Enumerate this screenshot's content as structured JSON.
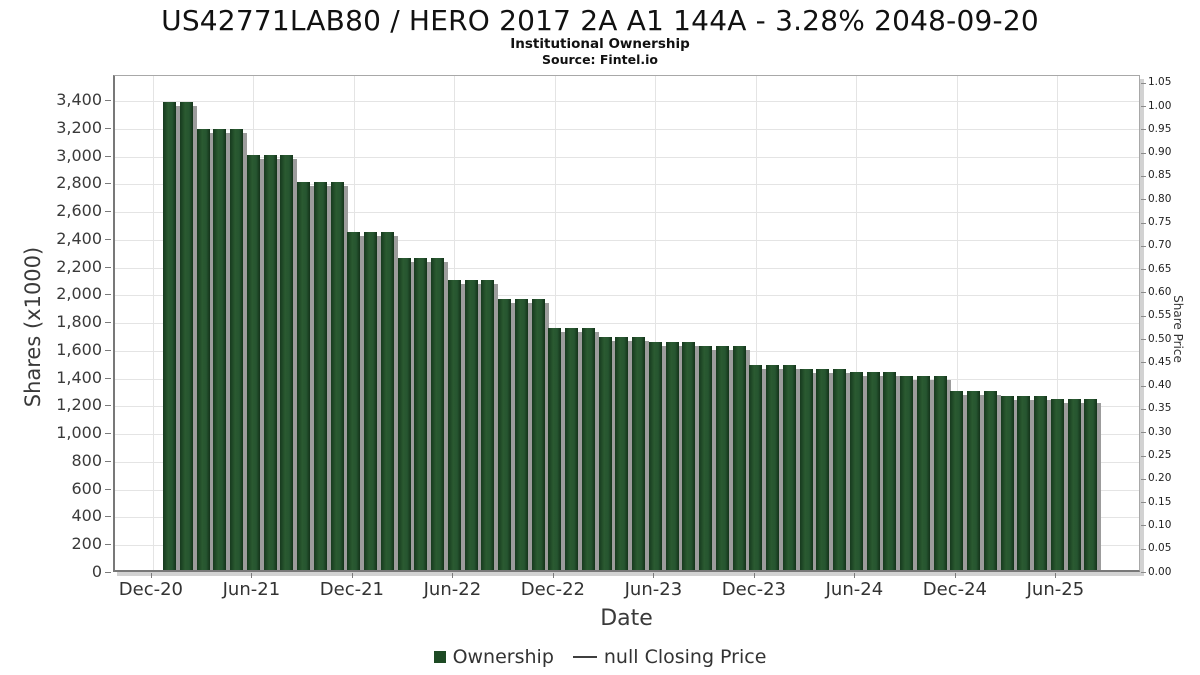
{
  "chart_data": {
    "type": "bar",
    "title": "US42771LAB80 / HERO 2017 2A A1 144A - 3.28% 2048-09-20",
    "subtitle": "Institutional Ownership",
    "source": "Source: Fintel.io",
    "xlabel": "Date",
    "ylabel_left": "Shares (x1000)",
    "ylabel_right": "Share Price",
    "y_left_axis": {
      "min": 0,
      "max": 3400,
      "step": 200,
      "grid": true
    },
    "y_right_axis": {
      "min": 0.0,
      "max": 1.05,
      "step": 0.05
    },
    "x_tick_labels": [
      "Dec-20",
      "Jun-21",
      "Dec-21",
      "Jun-22",
      "Dec-22",
      "Jun-23",
      "Dec-23",
      "Jun-24",
      "Dec-24",
      "Jun-25"
    ],
    "legend": {
      "ownership_label": "Ownership",
      "price_label": "null Closing Price",
      "bar_color": "#1d4a24"
    },
    "categories": [
      "Jan-21",
      "Feb-21",
      "Mar-21",
      "Apr-21",
      "May-21",
      "Jun-21",
      "Jul-21",
      "Aug-21",
      "Sep-21",
      "Oct-21",
      "Nov-21",
      "Dec-21",
      "Jan-22",
      "Feb-22",
      "Mar-22",
      "Apr-22",
      "May-22",
      "Jun-22",
      "Jul-22",
      "Aug-22",
      "Sep-22",
      "Oct-22",
      "Nov-22",
      "Dec-22",
      "Jan-23",
      "Feb-23",
      "Mar-23",
      "Apr-23",
      "May-23",
      "Jun-23",
      "Jul-23",
      "Aug-23",
      "Sep-23",
      "Oct-23",
      "Nov-23",
      "Dec-23",
      "Jan-24",
      "Feb-24",
      "Mar-24",
      "Apr-24",
      "May-24",
      "Jun-24",
      "Jul-24",
      "Aug-24",
      "Sep-24",
      "Oct-24",
      "Nov-24",
      "Dec-24",
      "Jan-25",
      "Feb-25",
      "Mar-25",
      "Apr-25",
      "May-25",
      "Jun-25",
      "Jul-25",
      "Aug-25"
    ],
    "values": [
      3390,
      3390,
      3195,
      3195,
      3195,
      3010,
      3010,
      3010,
      2815,
      2815,
      2815,
      2455,
      2455,
      2455,
      2270,
      2270,
      2270,
      2110,
      2110,
      2110,
      1975,
      1975,
      1975,
      1765,
      1765,
      1765,
      1700,
      1700,
      1700,
      1665,
      1665,
      1665,
      1635,
      1635,
      1635,
      1500,
      1500,
      1500,
      1470,
      1470,
      1470,
      1450,
      1450,
      1450,
      1420,
      1420,
      1420,
      1310,
      1310,
      1310,
      1272,
      1272,
      1272,
      1250,
      1250,
      1250
    ],
    "values_unit": "thousands of shares",
    "colors": {
      "bar": "#1d4a24",
      "bar_shadow": "#9c9c9c",
      "gridline": "#e4e4e4",
      "axis": "#787878",
      "text": "#333333"
    }
  }
}
